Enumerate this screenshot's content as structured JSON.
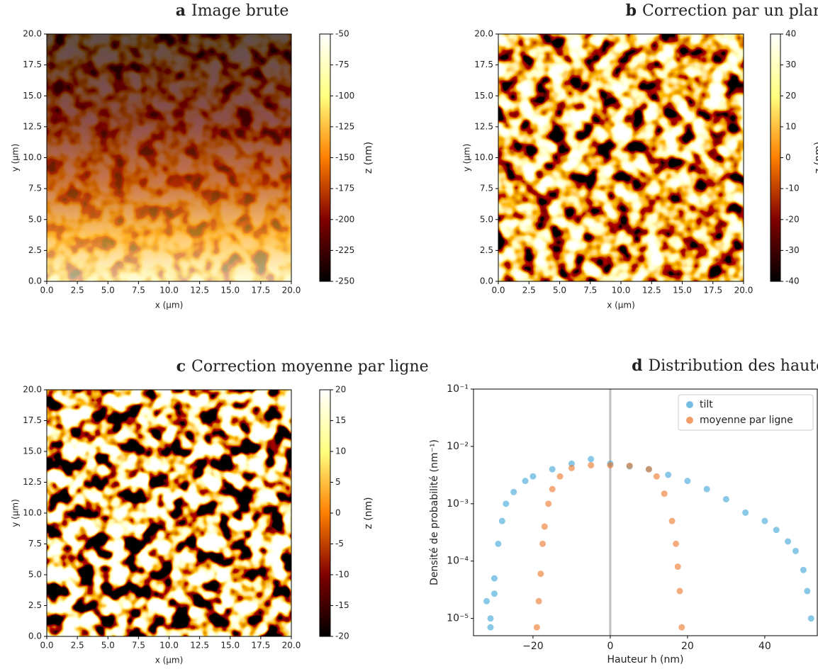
{
  "chart_data": [
    {
      "type": "heatmap",
      "panel_label": "a",
      "title": "Image brute",
      "xlabel": "x (μm)",
      "ylabel": "y (μm)",
      "cmap": "afmhot",
      "trend": "vertical",
      "xlim": [
        0,
        20
      ],
      "ylim": [
        0,
        20
      ],
      "xticks": [
        {
          "value": 0,
          "label": "0.0"
        },
        2.5,
        {
          "value": 5,
          "label": "5.0"
        },
        7.5,
        {
          "value": 10,
          "label": "10.0"
        },
        12.5,
        {
          "value": 15,
          "label": "15.0"
        },
        17.5,
        {
          "value": 20,
          "label": "20.0"
        }
      ],
      "yticks": [
        {
          "value": 0,
          "label": "0.0"
        },
        2.5,
        {
          "value": 5,
          "label": "5.0"
        },
        7.5,
        {
          "value": 10,
          "label": "10.0"
        },
        12.5,
        {
          "value": 15,
          "label": "15.0"
        },
        17.5,
        {
          "value": 20,
          "label": "20.0"
        }
      ],
      "colorbar": {
        "label": "z (nm)",
        "lim": [
          -250,
          -50
        ],
        "ticks": [
          -250,
          -225,
          -200,
          -175,
          -150,
          -125,
          -100,
          -75,
          -50
        ]
      }
    },
    {
      "type": "heatmap",
      "panel_label": "b",
      "title": "Correction par un plan - tilt",
      "xlabel": "x (μm)",
      "ylabel": "y (μm)",
      "cmap": "afmhot",
      "trend": "none",
      "xlim": [
        0,
        20
      ],
      "ylim": [
        0,
        20
      ],
      "xticks": [
        {
          "value": 0,
          "label": "0.0"
        },
        2.5,
        {
          "value": 5,
          "label": "5.0"
        },
        7.5,
        {
          "value": 10,
          "label": "10.0"
        },
        12.5,
        {
          "value": 15,
          "label": "15.0"
        },
        17.5,
        {
          "value": 20,
          "label": "20.0"
        }
      ],
      "yticks": [
        {
          "value": 0,
          "label": "0.0"
        },
        2.5,
        {
          "value": 5,
          "label": "5.0"
        },
        7.5,
        {
          "value": 10,
          "label": "10.0"
        },
        12.5,
        {
          "value": 15,
          "label": "15.0"
        },
        17.5,
        {
          "value": 20,
          "label": "20.0"
        }
      ],
      "colorbar": {
        "label": "z (nm)",
        "lim": [
          -40,
          40
        ],
        "ticks": [
          -40,
          -30,
          -20,
          -10,
          0,
          10,
          20,
          30,
          40
        ]
      }
    },
    {
      "type": "heatmap",
      "panel_label": "c",
      "title": "Correction moyenne par ligne",
      "xlabel": "x (μm)",
      "ylabel": "y (μm)",
      "cmap": "afmhot",
      "trend": "none",
      "xlim": [
        0,
        20
      ],
      "ylim": [
        0,
        20
      ],
      "xticks": [
        {
          "value": 0,
          "label": "0.0"
        },
        2.5,
        {
          "value": 5,
          "label": "5.0"
        },
        7.5,
        {
          "value": 10,
          "label": "10.0"
        },
        12.5,
        {
          "value": 15,
          "label": "15.0"
        },
        17.5,
        {
          "value": 20,
          "label": "20.0"
        }
      ],
      "yticks": [
        {
          "value": 0,
          "label": "0.0"
        },
        2.5,
        {
          "value": 5,
          "label": "5.0"
        },
        7.5,
        {
          "value": 10,
          "label": "10.0"
        },
        12.5,
        {
          "value": 15,
          "label": "15.0"
        },
        17.5,
        {
          "value": 20,
          "label": "20.0"
        }
      ],
      "colorbar": {
        "label": "z (nm)",
        "lim": [
          -20,
          20
        ],
        "ticks": [
          -20,
          -15,
          -10,
          -5,
          0,
          5,
          10,
          15,
          20
        ]
      }
    },
    {
      "type": "scatter",
      "panel_label": "d",
      "title": "Distribution des hauteurs",
      "xlabel": "Hauteur h (nm)",
      "ylabel": "Densité de probabilité (nm⁻¹)",
      "log_y": true,
      "legend": "upper right",
      "vline": 0,
      "xlim": [
        -35.4,
        53.6
      ],
      "ylim": [
        5e-06,
        0.1
      ],
      "xticks": [
        {
          "value": -20,
          "label": "−20"
        },
        0,
        20,
        40
      ],
      "yticks": [
        {
          "value": 1e-05,
          "label": "10⁻⁵"
        },
        {
          "value": 0.0001,
          "label": "10⁻⁴"
        },
        {
          "value": 0.001,
          "label": "10⁻³"
        },
        {
          "value": 0.01,
          "label": "10⁻²"
        },
        {
          "value": 0.1,
          "label": "10⁻¹"
        }
      ],
      "series": [
        {
          "name": "tilt",
          "color": "#3ba3d6",
          "x": [
            -32,
            -31,
            -31,
            -30,
            -30,
            -29,
            -28,
            -27,
            -25,
            -22,
            -20,
            -15,
            -10,
            -5,
            0,
            5,
            10,
            15,
            20,
            25,
            30,
            35,
            40,
            43,
            46,
            48,
            50,
            51,
            52
          ],
          "values": [
            2e-05,
            1e-05,
            7e-06,
            5e-05,
            2.7e-05,
            0.0002,
            0.0005,
            0.001,
            0.0016,
            0.0025,
            0.003,
            0.004,
            0.005,
            0.006,
            0.005,
            0.0045,
            0.004,
            0.0032,
            0.0025,
            0.0018,
            0.0012,
            0.0007,
            0.0005,
            0.00035,
            0.00022,
            0.00015,
            7e-05,
            3e-05,
            1e-05
          ]
        },
        {
          "name": "moyenne par ligne",
          "color": "#ec7426",
          "x": [
            -19,
            -18.5,
            -18,
            -17.5,
            -17,
            -16,
            -15,
            -13,
            -10,
            -5,
            0,
            5,
            10,
            12,
            14,
            16,
            17,
            17.5,
            18,
            18.5
          ],
          "values": [
            7e-06,
            2e-05,
            6e-05,
            0.0002,
            0.0004,
            0.001,
            0.0018,
            0.003,
            0.0042,
            0.0047,
            0.0047,
            0.0046,
            0.004,
            0.003,
            0.0015,
            0.0005,
            0.0002,
            8e-05,
            3e-05,
            7e-06
          ]
        }
      ]
    }
  ]
}
